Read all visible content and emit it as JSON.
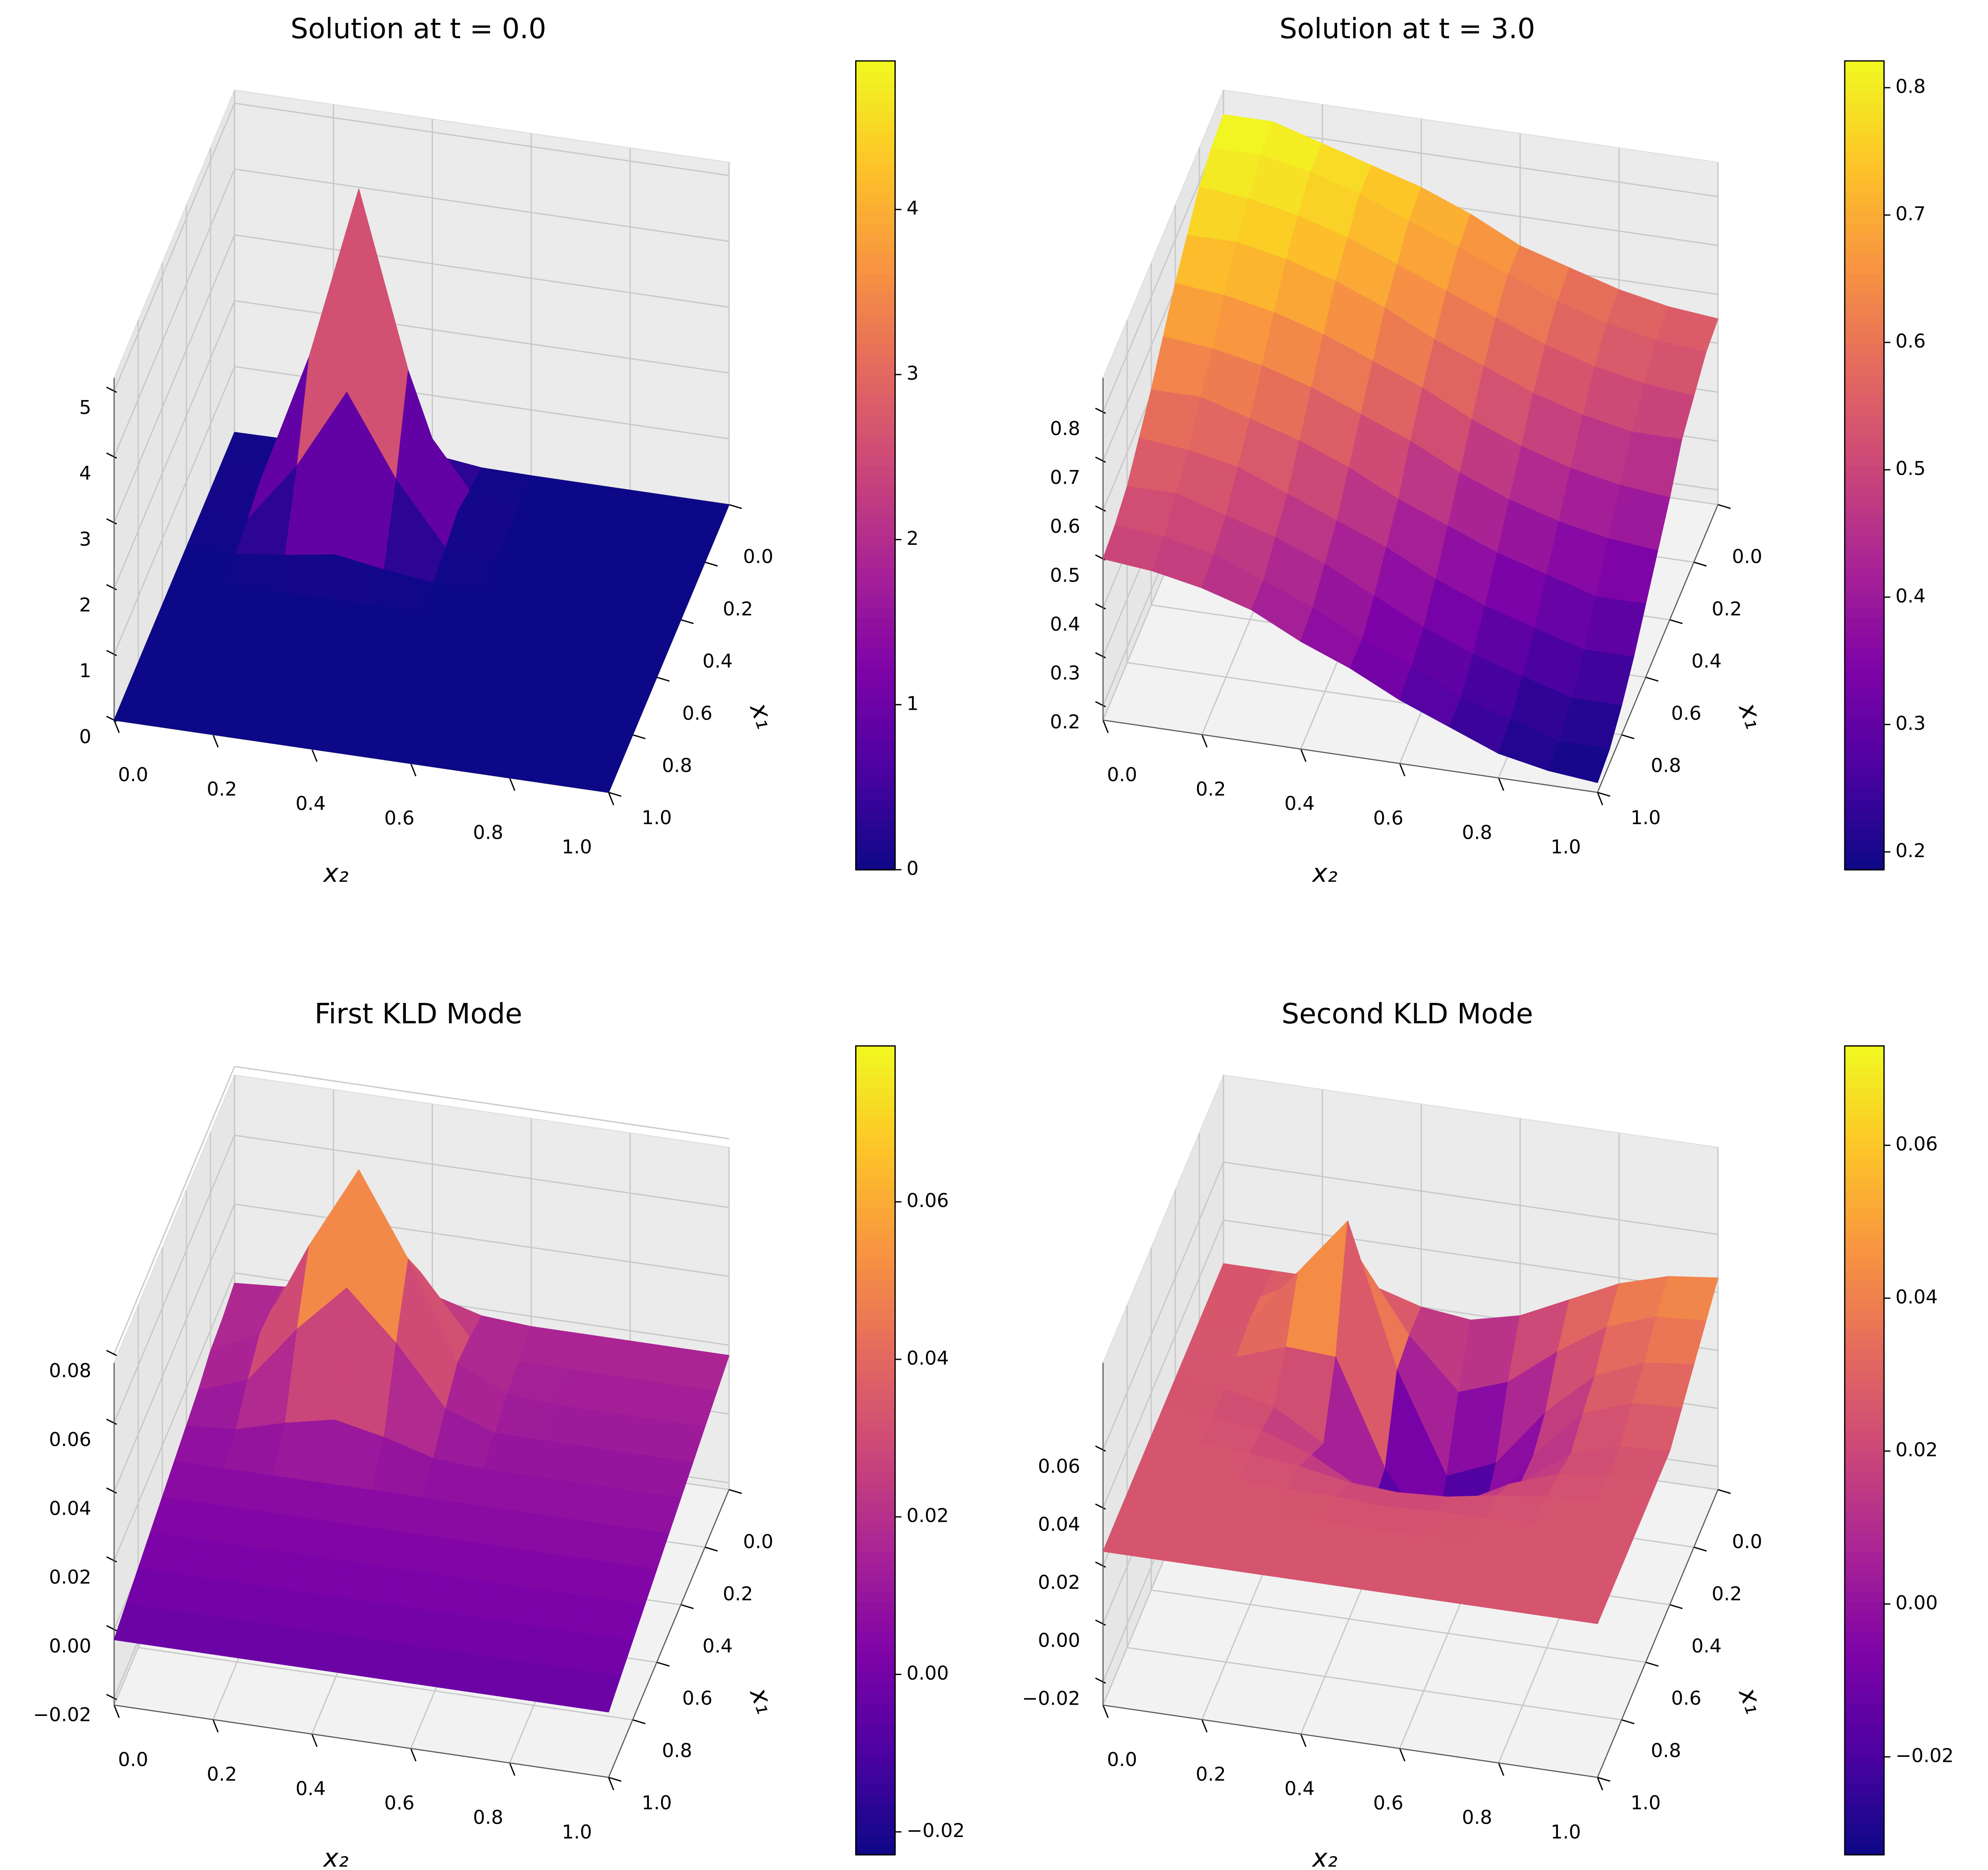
{
  "chart_data": [
    {
      "type": "surface",
      "title": "Solution at t = 0.0",
      "xlabel": "x₂",
      "ylabel": "x₁",
      "colormap": "plasma",
      "x1": [
        0,
        0.1,
        0.2,
        0.3,
        0.4,
        0.5,
        0.6,
        0.7,
        0.8,
        0.9,
        1
      ],
      "x2": [
        0,
        0.1,
        0.2,
        0.3,
        0.4,
        0.5,
        0.6,
        0.7,
        0.8,
        0.9,
        1
      ],
      "z": [
        [
          0,
          0.01,
          0.1,
          0.22,
          0.1,
          0.01,
          0,
          0,
          0,
          0,
          0
        ],
        [
          0,
          0.1,
          1.03,
          2.25,
          1.03,
          0.1,
          0,
          0,
          0,
          0,
          0
        ],
        [
          0,
          0.22,
          2.25,
          4.9,
          2.25,
          0.22,
          0,
          0,
          0,
          0,
          0
        ],
        [
          0,
          0.1,
          1.03,
          2.25,
          1.03,
          0.1,
          0,
          0,
          0,
          0,
          0
        ],
        [
          0,
          0.01,
          0.1,
          0.22,
          0.1,
          0.01,
          0,
          0,
          0,
          0,
          0
        ],
        [
          0,
          0,
          0,
          0,
          0,
          0,
          0,
          0,
          0,
          0,
          0
        ],
        [
          0,
          0,
          0,
          0,
          0,
          0,
          0,
          0,
          0,
          0,
          0
        ],
        [
          0,
          0,
          0,
          0,
          0,
          0,
          0,
          0,
          0,
          0,
          0
        ],
        [
          0,
          0,
          0,
          0,
          0,
          0,
          0,
          0,
          0,
          0,
          0
        ],
        [
          0,
          0,
          0,
          0,
          0,
          0,
          0,
          0,
          0,
          0,
          0
        ],
        [
          0,
          0,
          0,
          0,
          0,
          0,
          0,
          0,
          0,
          0,
          0
        ]
      ],
      "x1lim": [
        0,
        1
      ],
      "x2lim": [
        0,
        1
      ],
      "zlim": [
        0,
        5.2
      ],
      "x1ticks": [
        {
          "value": 0,
          "label": "0.0"
        },
        0.2,
        0.4,
        0.6,
        0.8,
        {
          "value": 1,
          "label": "1.0"
        }
      ],
      "x2ticks": [
        {
          "value": 0,
          "label": "0.0"
        },
        0.2,
        0.4,
        0.6,
        0.8,
        {
          "value": 1,
          "label": "1.0"
        }
      ],
      "zticks": [
        0,
        1,
        2,
        3,
        4,
        5
      ],
      "clim": [
        0,
        4.9
      ],
      "cticks": [
        0,
        1,
        2,
        3,
        4
      ]
    },
    {
      "type": "surface",
      "title": "Solution at t = 3.0",
      "xlabel": "x₂",
      "ylabel": "x₁",
      "colormap": "plasma",
      "x1": [
        0,
        0.1,
        0.2,
        0.3,
        0.4,
        0.5,
        0.6,
        0.7,
        0.8,
        0.9,
        1
      ],
      "x2": [
        0,
        0.1,
        0.2,
        0.3,
        0.4,
        0.5,
        0.6,
        0.7,
        0.8,
        0.9,
        1
      ],
      "z": [
        [
          0.82,
          0.82,
          0.79,
          0.76,
          0.73,
          0.69,
          0.64,
          0.61,
          0.58,
          0.56,
          0.55
        ],
        [
          0.81,
          0.81,
          0.79,
          0.76,
          0.72,
          0.68,
          0.64,
          0.6,
          0.57,
          0.55,
          0.54
        ],
        [
          0.79,
          0.78,
          0.76,
          0.73,
          0.69,
          0.65,
          0.61,
          0.57,
          0.54,
          0.52,
          0.51
        ],
        [
          0.75,
          0.75,
          0.73,
          0.7,
          0.66,
          0.61,
          0.57,
          0.53,
          0.5,
          0.48,
          0.48
        ],
        [
          0.71,
          0.7,
          0.68,
          0.65,
          0.61,
          0.57,
          0.52,
          0.48,
          0.45,
          0.43,
          0.42
        ],
        [
          0.66,
          0.65,
          0.63,
          0.6,
          0.56,
          0.52,
          0.47,
          0.43,
          0.4,
          0.38,
          0.37
        ],
        [
          0.61,
          0.61,
          0.58,
          0.55,
          0.51,
          0.46,
          0.42,
          0.38,
          0.35,
          0.32,
          0.32
        ],
        [
          0.57,
          0.56,
          0.54,
          0.5,
          0.46,
          0.42,
          0.37,
          0.33,
          0.3,
          0.27,
          0.27
        ],
        [
          0.53,
          0.53,
          0.5,
          0.47,
          0.43,
          0.38,
          0.33,
          0.29,
          0.26,
          0.23,
          0.23
        ],
        [
          0.51,
          0.5,
          0.48,
          0.44,
          0.4,
          0.35,
          0.31,
          0.26,
          0.23,
          0.2,
          0.2
        ],
        [
          0.5,
          0.49,
          0.47,
          0.44,
          0.39,
          0.35,
          0.3,
          0.26,
          0.22,
          0.2,
          0.19
        ]
      ],
      "x1lim": [
        0,
        1
      ],
      "x2lim": [
        0,
        1
      ],
      "zlim": [
        0.17,
        0.87
      ],
      "x1ticks": [
        {
          "value": 0,
          "label": "0.0"
        },
        0.2,
        0.4,
        0.6,
        0.8,
        {
          "value": 1,
          "label": "1.0"
        }
      ],
      "x2ticks": [
        {
          "value": 0,
          "label": "0.0"
        },
        0.2,
        0.4,
        0.6,
        0.8,
        {
          "value": 1,
          "label": "1.0"
        }
      ],
      "zticks": [
        0.2,
        0.3,
        0.4,
        0.5,
        0.6,
        0.7,
        0.8
      ],
      "clim": [
        0.186,
        0.821
      ],
      "cticks": [
        0.2,
        0.3,
        0.4,
        0.5,
        0.6,
        0.7,
        0.8
      ]
    },
    {
      "type": "surface",
      "title": "First KLD Mode",
      "xlabel": "x₂",
      "ylabel": "x₁",
      "colormap": "plasma",
      "x1": [
        0,
        0.1,
        0.2,
        0.3,
        0.4,
        0.5,
        0.6,
        0.7,
        0.8,
        0.9,
        1
      ],
      "x2": [
        0,
        0.1,
        0.2,
        0.3,
        0.4,
        0.5,
        0.6,
        0.7,
        0.8,
        0.9,
        1
      ],
      "z": [
        [
          0.017,
          0.018,
          0.022,
          0.025,
          0.022,
          0.018,
          0.017,
          0.017,
          0.017,
          0.017,
          0.017
        ],
        [
          0.015,
          0.02,
          0.037,
          0.051,
          0.037,
          0.02,
          0.015,
          0.015,
          0.015,
          0.015,
          0.015
        ],
        [
          0.014,
          0.021,
          0.049,
          0.073,
          0.049,
          0.021,
          0.014,
          0.013,
          0.013,
          0.013,
          0.013
        ],
        [
          0.011,
          0.016,
          0.033,
          0.047,
          0.033,
          0.016,
          0.011,
          0.011,
          0.011,
          0.011,
          0.011
        ],
        [
          0.009,
          0.01,
          0.014,
          0.017,
          0.014,
          0.01,
          0.009,
          0.009,
          0.009,
          0.009,
          0.009
        ],
        [
          0.007,
          0.007,
          0.007,
          0.007,
          0.007,
          0.007,
          0.007,
          0.007,
          0.007,
          0.007,
          0.007
        ],
        [
          0.005,
          0.005,
          0.005,
          0.005,
          0.005,
          0.005,
          0.005,
          0.005,
          0.005,
          0.005,
          0.005
        ],
        [
          0.003,
          0.003,
          0.003,
          0.003,
          0.003,
          0.003,
          0.003,
          0.003,
          0.003,
          0.003,
          0.003
        ],
        [
          0.001,
          0.001,
          0.001,
          0.001,
          0.001,
          0.001,
          0.001,
          0.001,
          0.001,
          0.001,
          0.001
        ],
        [
          -0.001,
          -0.001,
          -0.001,
          -0.001,
          -0.001,
          -0.001,
          -0.001,
          -0.001,
          -0.001,
          -0.001,
          -0.001
        ],
        [
          -0.003,
          -0.003,
          -0.003,
          -0.003,
          -0.003,
          -0.003,
          -0.003,
          -0.003,
          -0.003,
          -0.003,
          -0.003
        ]
      ],
      "x1lim": [
        0,
        1
      ],
      "x2lim": [
        0,
        1
      ],
      "zlim": [
        -0.022,
        0.0775
      ],
      "x1ticks": [
        {
          "value": 0,
          "label": "0.0"
        },
        0.2,
        0.4,
        0.6,
        0.8,
        {
          "value": 1,
          "label": "1.0"
        }
      ],
      "x2ticks": [
        {
          "value": 0,
          "label": "0.0"
        },
        0.2,
        0.4,
        0.6,
        0.8,
        {
          "value": 1,
          "label": "1.0"
        }
      ],
      "zticks": [
        {
          "value": -0.02,
          "label": "−0.02"
        },
        {
          "value": 0,
          "label": "0.00"
        },
        0.02,
        0.04,
        0.06,
        0.08
      ],
      "clim": [
        -0.0229,
        0.0798
      ],
      "cticks": [
        {
          "value": -0.02,
          "label": "−0.02"
        },
        {
          "value": 0,
          "label": "0.00"
        },
        0.02,
        0.04,
        0.06
      ]
    },
    {
      "type": "surface",
      "title": "Second KLD Mode",
      "xlabel": "x₂",
      "ylabel": "x₁",
      "colormap": "plasma",
      "x1": [
        0,
        0.1,
        0.2,
        0.3,
        0.4,
        0.5,
        0.6,
        0.7,
        0.8,
        0.9,
        1
      ],
      "x2": [
        0,
        0.1,
        0.2,
        0.3,
        0.4,
        0.5,
        0.6,
        0.7,
        0.8,
        0.9,
        1
      ],
      "z": [
        [
          0.025,
          0.025,
          0.025,
          0.025,
          0.02,
          0.018,
          0.022,
          0.03,
          0.038,
          0.043,
          0.045
        ],
        [
          0.025,
          0.026,
          0.035,
          0.044,
          0.02,
          0.003,
          0.009,
          0.022,
          0.033,
          0.039,
          0.04
        ],
        [
          0.025,
          0.027,
          0.047,
          0.067,
          0.018,
          -0.016,
          -0.009,
          0.011,
          0.026,
          0.033,
          0.035
        ],
        [
          0.025,
          0.025,
          0.031,
          0.03,
          -0.006,
          -0.029,
          -0.017,
          0.006,
          0.023,
          0.029,
          0.03
        ],
        [
          0.025,
          0.024,
          0.02,
          0.01,
          -0.009,
          -0.019,
          -0.01,
          0.007,
          0.019,
          0.024,
          0.025
        ],
        [
          0.025,
          0.024,
          0.022,
          0.016,
          0.007,
          0.002,
          0.007,
          0.016,
          0.022,
          0.024,
          0.025
        ],
        [
          0.025,
          0.025,
          0.024,
          0.022,
          0.019,
          0.018,
          0.019,
          0.022,
          0.024,
          0.025,
          0.025
        ],
        [
          0.025,
          0.025,
          0.025,
          0.024,
          0.024,
          0.023,
          0.024,
          0.024,
          0.025,
          0.025,
          0.025
        ],
        [
          0.025,
          0.025,
          0.025,
          0.025,
          0.025,
          0.025,
          0.025,
          0.025,
          0.025,
          0.025,
          0.025
        ],
        [
          0.025,
          0.025,
          0.025,
          0.025,
          0.025,
          0.025,
          0.025,
          0.025,
          0.025,
          0.025,
          0.025
        ],
        [
          0.025,
          0.025,
          0.025,
          0.025,
          0.025,
          0.025,
          0.025,
          0.025,
          0.025,
          0.025,
          0.025
        ]
      ],
      "x1lim": [
        0,
        1
      ],
      "x2lim": [
        0,
        1
      ],
      "zlim": [
        -0.028,
        0.09
      ],
      "x1ticks": [
        {
          "value": 0,
          "label": "0.0"
        },
        0.2,
        0.4,
        0.6,
        0.8,
        {
          "value": 1,
          "label": "1.0"
        }
      ],
      "x2ticks": [
        {
          "value": 0,
          "label": "0.0"
        },
        0.2,
        0.4,
        0.6,
        0.8,
        {
          "value": 1,
          "label": "1.0"
        }
      ],
      "zticks": [
        {
          "value": -0.02,
          "label": "−0.02"
        },
        {
          "value": 0,
          "label": "0.00"
        },
        0.02,
        0.04,
        0.06
      ],
      "clim": [
        -0.0328,
        0.073
      ],
      "cticks": [
        {
          "value": -0.02,
          "label": "−0.02"
        },
        {
          "value": 0,
          "label": "0.00"
        },
        0.02,
        0.04,
        0.06
      ]
    }
  ]
}
